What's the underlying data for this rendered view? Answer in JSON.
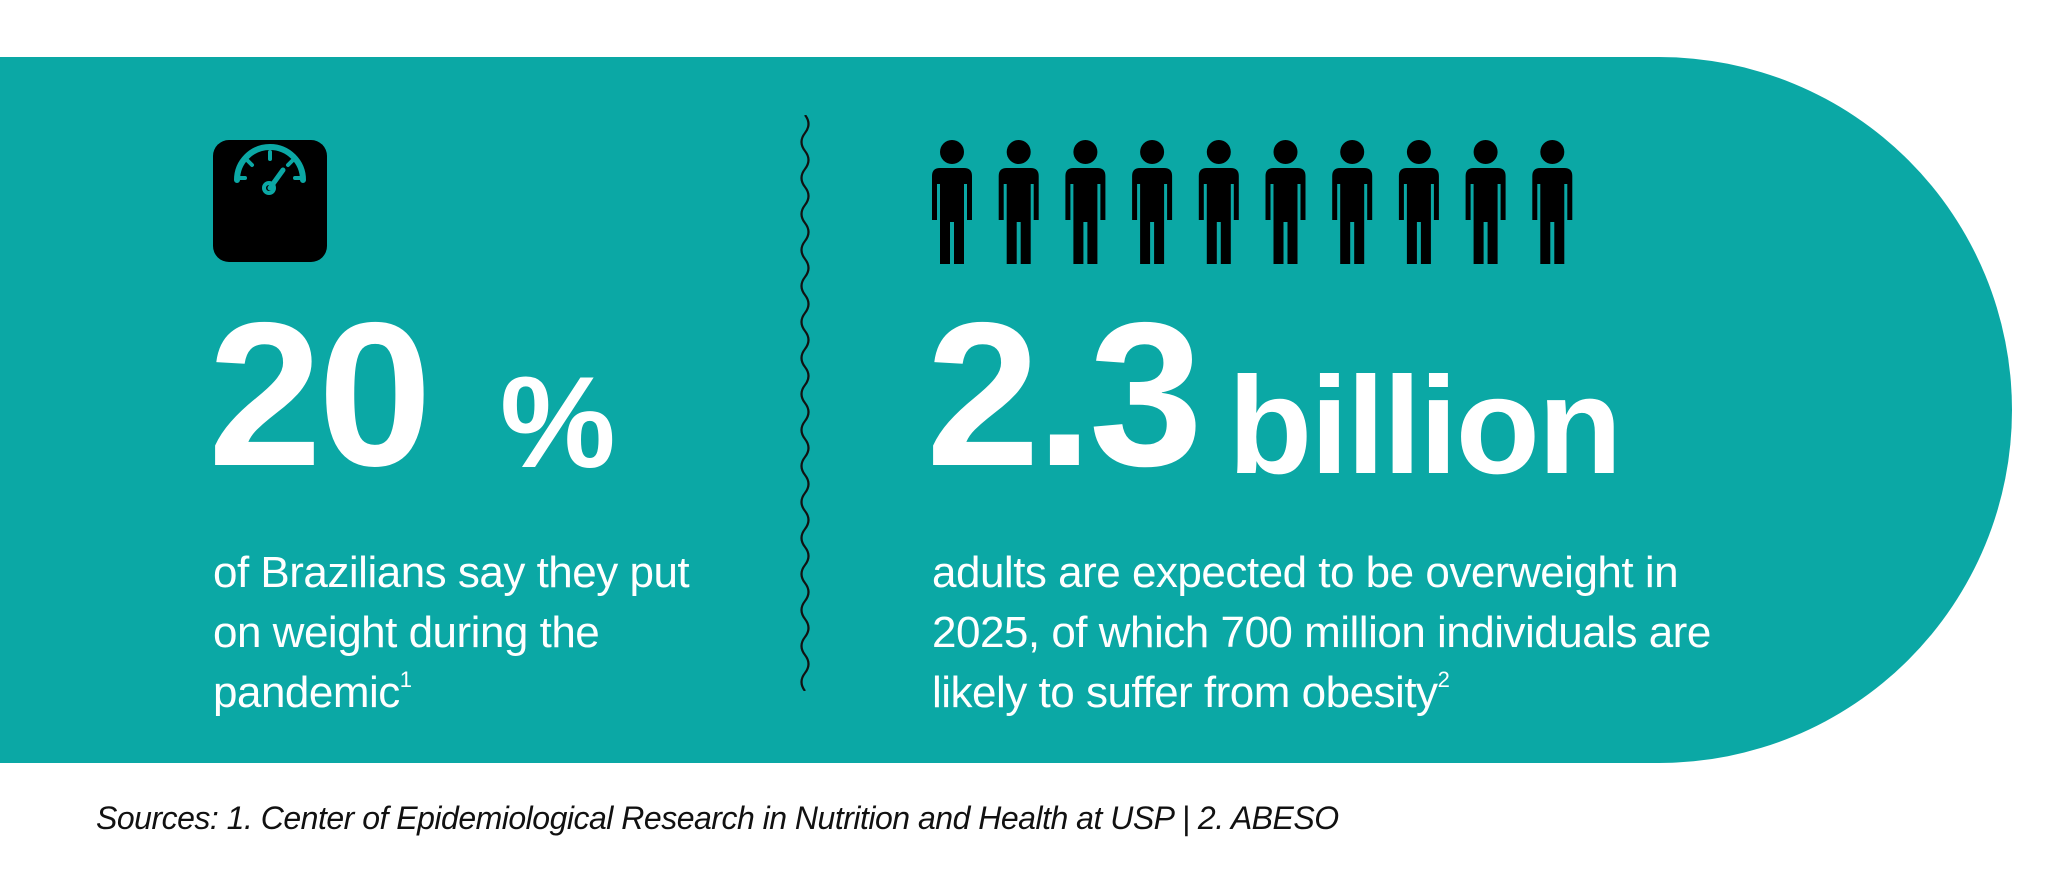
{
  "colors": {
    "panel": "#0ba8a5",
    "text_light": "#ffffff",
    "icon_dark": "#000000"
  },
  "left_stat": {
    "icon": "bathroom-scale-icon",
    "value": "20",
    "unit": "%",
    "description": "of Brazilians say they put on weight during the pandemic",
    "footnote": "1"
  },
  "right_stat": {
    "icon": "person-icon",
    "icon_count": 10,
    "value": "2.3",
    "unit": "billion",
    "description": "adults are expected to be overweight in 2025, of which 700 million individuals are likely to suffer from obesity",
    "footnote": "2"
  },
  "sources": "Sources: 1. Center of Epidemiological Research in Nutrition and Health at USP | 2. ABESO"
}
